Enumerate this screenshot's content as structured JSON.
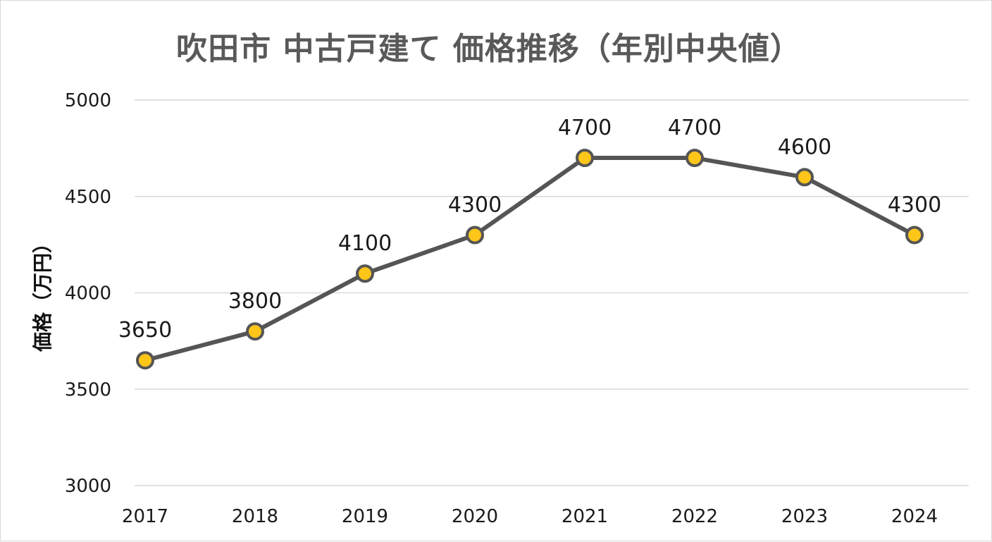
{
  "colors": {
    "line": "#555555",
    "marker_fill": "#FFC61A",
    "marker_stroke": "#555555",
    "grid": "#d9d9d9"
  },
  "chart_data": {
    "type": "line",
    "title": "吹田市 中古戸建て 価格推移（年別中央値）",
    "xlabel": "",
    "ylabel": "価格（万円）",
    "categories": [
      "2017",
      "2018",
      "2019",
      "2020",
      "2021",
      "2022",
      "2023",
      "2024"
    ],
    "values": [
      3650,
      3800,
      4100,
      4300,
      4700,
      4700,
      4600,
      4300
    ],
    "ylim": [
      3000,
      5000
    ],
    "yticks": [
      3000,
      3500,
      4000,
      4500,
      5000
    ],
    "grid": true,
    "legend": "none",
    "data_labels": true
  }
}
